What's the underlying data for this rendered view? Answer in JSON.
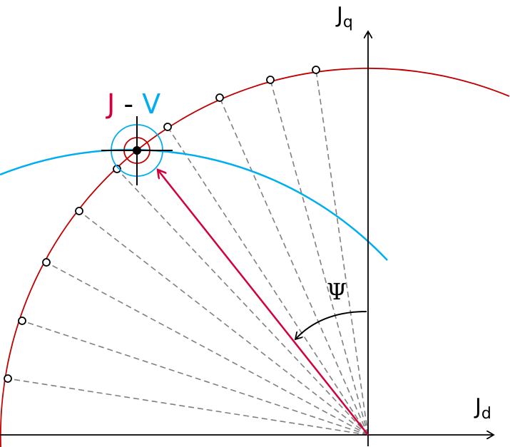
{
  "labels": {
    "jq": "J",
    "jq_sub": "q",
    "jd": "J",
    "jd_sub": "d",
    "psi": "Ψ",
    "jv_j": "J",
    "jv_dash": "-",
    "jv_v": "V"
  },
  "colors": {
    "current_circle": "#c00000",
    "voltage_ellipse": "#00aeef",
    "current_vector": "#d4003c",
    "dashed": "#808080",
    "axis": "#000000"
  }
}
